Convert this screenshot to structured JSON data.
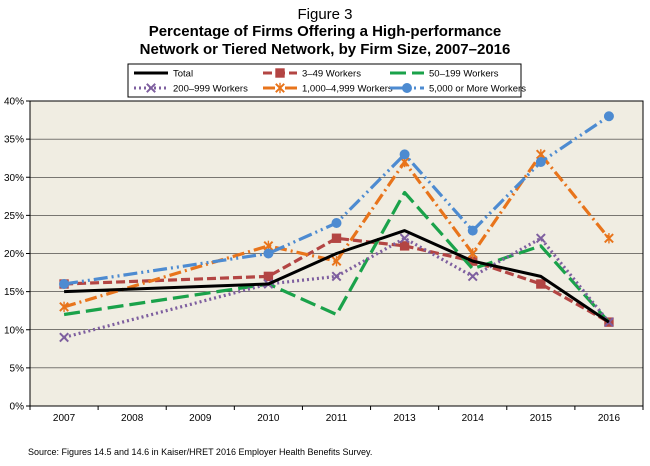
{
  "figure_label": "Figure 3",
  "title_lines": [
    "Percentage of Firms Offering a High-performance",
    "Network or Tiered Network, by Firm Size, 2007–2016"
  ],
  "source": "Source: Figures 14.5 and 14.6 in Kaiser/HRET 2016 Employer Health Benefits Survey.",
  "colors": {
    "plot_bg": "#f0ede2",
    "frame": "#000000",
    "grid": "#000000"
  },
  "chart_data": {
    "type": "line",
    "title": "Percentage of Firms Offering a High-performance Network or Tiered Network, by Firm Size, 2007–2016",
    "xlabel": "",
    "ylabel": "",
    "categories": [
      "2007",
      "2008",
      "2009",
      "2010",
      "2011",
      "2013",
      "2014",
      "2015",
      "2016"
    ],
    "ylim": [
      0,
      40
    ],
    "yticks": [
      "0%",
      "5%",
      "10%",
      "15%",
      "20%",
      "25%",
      "30%",
      "35%",
      "40%"
    ],
    "grid": true,
    "legend_position": "top",
    "series": [
      {
        "name": "Total",
        "color": "#000000",
        "dash": "solid",
        "marker": "none",
        "values": [
          15,
          null,
          null,
          16,
          20,
          23,
          19,
          17,
          11
        ]
      },
      {
        "name": "3–49 Workers",
        "color": "#b34543",
        "dash": "dash",
        "marker": "square",
        "values": [
          16,
          null,
          null,
          17,
          22,
          21,
          19,
          16,
          11
        ]
      },
      {
        "name": "50–199 Workers",
        "color": "#1aa24a",
        "dash": "longdash",
        "marker": "none",
        "values": [
          12,
          null,
          null,
          16,
          12,
          28,
          18,
          21,
          11
        ]
      },
      {
        "name": "200–999 Workers",
        "color": "#7e5f9f",
        "dash": "dot",
        "marker": "x",
        "values": [
          9,
          null,
          null,
          16,
          17,
          22,
          17,
          22,
          11
        ]
      },
      {
        "name": "1,000–4,999 Workers",
        "color": "#e8741b",
        "dash": "dashdot",
        "marker": "star",
        "values": [
          13,
          null,
          null,
          21,
          19,
          32,
          20,
          33,
          22
        ]
      },
      {
        "name": "5,000 or More Workers",
        "color": "#4d8bd1",
        "dash": "dashdotdot",
        "marker": "circle",
        "values": [
          16,
          null,
          null,
          20,
          24,
          33,
          23,
          32,
          38
        ]
      }
    ]
  }
}
